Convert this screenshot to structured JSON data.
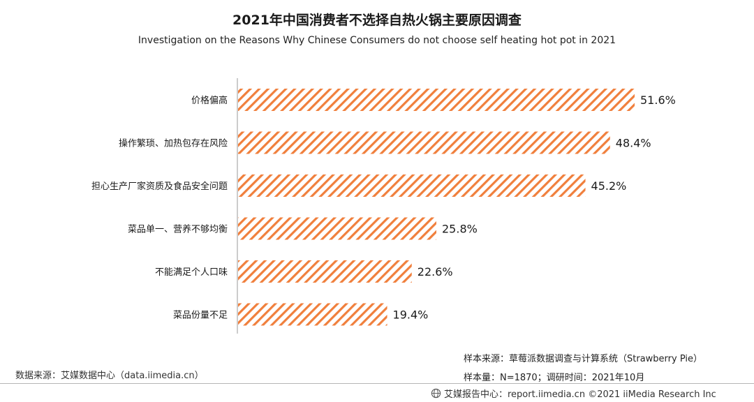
{
  "chart_data": {
    "type": "bar",
    "orientation": "horizontal",
    "title": "2021年中国消费者不选择自热火锅主要原因调查",
    "subtitle": "Investigation on the Reasons Why Chinese Consumers do not choose self heating hot pot in 2021",
    "categories": [
      "价格偏高",
      "操作繁琐、加热包存在风险",
      "担心生产厂家资质及食品安全问题",
      "菜品单一、营养不够均衡",
      "不能满足个人口味",
      "菜品份量不足"
    ],
    "values": [
      51.6,
      48.4,
      45.2,
      25.8,
      22.6,
      19.4
    ],
    "value_labels": [
      "51.6%",
      "48.4%",
      "45.2%",
      "25.8%",
      "22.6%",
      "19.4%"
    ],
    "unit": "%",
    "bar_color": "#f07f3c",
    "bar_fill": "diagonal-hatch",
    "xlim": [
      0,
      51.6
    ],
    "grid": false,
    "legend": false
  },
  "footer": {
    "data_source": "数据来源：艾媒数据中心（data.iimedia.cn）",
    "sample_source": "样本来源：草莓派数据调查与计算系统（Strawberry Pie）",
    "sample_info": "样本量：N=1870；调研时间：2021年10月",
    "brand": "艾媒报告中心：report.iimedia.cn  ©2021  iiMedia Research  Inc",
    "brand_icon": "globe-icon"
  }
}
